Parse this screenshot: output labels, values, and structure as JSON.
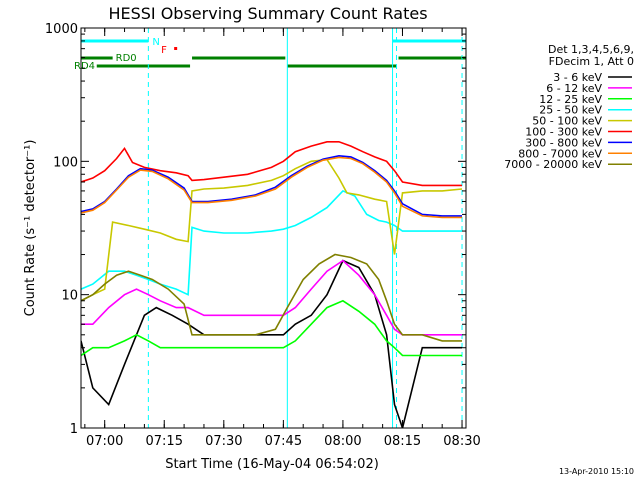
{
  "chart_data": {
    "type": "line",
    "title": "HESSI Observing Summary Count Rates",
    "xlabel": "Start Time (16-May-04 06:54:02)",
    "ylabel": "Count Rate (s⁻¹ detector⁻¹)",
    "y_scale": "log",
    "xlim": [
      "06:54:02",
      "08:31:00"
    ],
    "ylim": [
      1,
      1000
    ],
    "x_ticks": [
      "07:00",
      "07:15",
      "07:30",
      "07:45",
      "08:00",
      "08:15",
      "08:30"
    ],
    "y_ticks": [
      "1",
      "10",
      "100",
      "1000"
    ],
    "grid": false,
    "legend_position": "right",
    "legend_header": [
      "Det 1,3,4,5,6,9,",
      "FDecim 1, Att 0"
    ],
    "footer_date": "13-Apr-2010 15:10",
    "flag_labels": {
      "night": "N",
      "flare": "F",
      "rd0": "RD0",
      "rd4": "RD4"
    },
    "flags": {
      "night_intervals": [
        [
          "06:54:02",
          "07:11:00"
        ],
        [
          "08:12:30",
          "08:31:00"
        ]
      ],
      "flare_mark": "07:18",
      "rd0_intervals": [
        [
          "06:54:02",
          "07:02:00"
        ],
        [
          "07:22:00",
          "07:45:30"
        ],
        [
          "08:14:00",
          "08:31:00"
        ]
      ],
      "rd4_intervals": [
        [
          "06:58:00",
          "07:21:30"
        ],
        [
          "07:46:00",
          "08:13:30"
        ]
      ]
    },
    "markers": {
      "cyan_solid": [
        "06:54:02",
        "07:46:00",
        "08:12:30"
      ],
      "cyan_dashed": [
        "07:11:00",
        "08:13:30",
        "08:30:00"
      ]
    },
    "series": [
      {
        "name": "3 - 6 keV",
        "color": "#000000",
        "x": [
          "06:54:02",
          "06:57:00",
          "07:01:00",
          "07:05:00",
          "07:08:00",
          "07:10:00",
          "07:13:00",
          "07:17:00",
          "07:21:00",
          "07:25:00",
          "07:30:00",
          "07:36:00",
          "07:42:00",
          "07:45:00",
          "07:48:00",
          "07:52:00",
          "07:56:00",
          "08:00:00",
          "08:04:00",
          "08:08:00",
          "08:11:00",
          "08:13:00",
          "08:15:00",
          "08:20:00",
          "08:25:00",
          "08:30:00"
        ],
        "y": [
          4.5,
          2.0,
          1.5,
          3.0,
          5.0,
          7.0,
          8.0,
          7.0,
          6.0,
          5.0,
          5.0,
          5.0,
          5.0,
          5.0,
          6.0,
          7.0,
          10.0,
          18.0,
          16.0,
          10.0,
          5.0,
          1.5,
          1.0,
          4.0,
          4.0,
          4.0
        ]
      },
      {
        "name": "6 - 12 keV",
        "color": "#ff00ff",
        "x": [
          "06:54:02",
          "06:57:00",
          "07:01:00",
          "07:05:00",
          "07:08:00",
          "07:11:00",
          "07:14:00",
          "07:18:00",
          "07:21:00",
          "07:25:00",
          "07:30:00",
          "07:36:00",
          "07:42:00",
          "07:45:00",
          "07:48:00",
          "07:52:00",
          "07:56:00",
          "08:00:00",
          "08:04:00",
          "08:08:00",
          "08:11:00",
          "08:13:00",
          "08:15:00",
          "08:20:00",
          "08:25:00",
          "08:30:00"
        ],
        "y": [
          6.0,
          6.0,
          8.0,
          10.0,
          11.0,
          10.0,
          9.0,
          8.0,
          8.0,
          7.0,
          7.0,
          7.0,
          7.0,
          7.0,
          8.0,
          11.0,
          15.0,
          18.0,
          14.0,
          10.0,
          7.0,
          5.5,
          5.0,
          5.0,
          5.0,
          5.0
        ]
      },
      {
        "name": "12 - 25 keV",
        "color": "#00ff00",
        "x": [
          "06:54:02",
          "06:57:00",
          "07:01:00",
          "07:05:00",
          "07:08:00",
          "07:11:00",
          "07:14:00",
          "07:18:00",
          "07:21:00",
          "07:25:00",
          "07:30:00",
          "07:36:00",
          "07:42:00",
          "07:45:00",
          "07:48:00",
          "07:52:00",
          "07:56:00",
          "08:00:00",
          "08:04:00",
          "08:08:00",
          "08:11:00",
          "08:13:00",
          "08:15:00",
          "08:20:00",
          "08:25:00",
          "08:30:00"
        ],
        "y": [
          3.5,
          4.0,
          4.0,
          4.5,
          5.0,
          4.5,
          4.0,
          4.0,
          4.0,
          4.0,
          4.0,
          4.0,
          4.0,
          4.0,
          4.5,
          6.0,
          8.0,
          9.0,
          7.5,
          6.0,
          4.5,
          4.0,
          3.5,
          3.5,
          3.5,
          3.5
        ]
      },
      {
        "name": "25 - 50 keV",
        "color": "#00ffff",
        "x": [
          "06:54:02",
          "06:57:00",
          "07:01:00",
          "07:05:00",
          "07:08:00",
          "07:11:00",
          "07:14:00",
          "07:18:00",
          "07:21:00",
          "07:22:00",
          "07:25:00",
          "07:30:00",
          "07:36:00",
          "07:42:00",
          "07:45:00",
          "07:48:00",
          "07:52:00",
          "07:56:00",
          "08:00:00",
          "08:03:00",
          "08:06:00",
          "08:09:00",
          "08:11:00",
          "08:13:00",
          "08:15:00",
          "08:20:00",
          "08:25:00",
          "08:30:00"
        ],
        "y": [
          11.0,
          12.0,
          15.0,
          15.0,
          14.0,
          13.0,
          12.0,
          11.0,
          10.0,
          32.0,
          30.0,
          29.0,
          29.0,
          30.0,
          31.0,
          33.0,
          38.0,
          45.0,
          60.0,
          55.0,
          40.0,
          36.0,
          35.0,
          33.0,
          30.0,
          30.0,
          30.0,
          30.0
        ]
      },
      {
        "name": "50 - 100 keV",
        "color": "#c8c800",
        "x": [
          "06:54:02",
          "06:57:00",
          "07:00:00",
          "07:02:00",
          "07:06:00",
          "07:10:00",
          "07:14:00",
          "07:18:00",
          "07:21:00",
          "07:22:00",
          "07:25:00",
          "07:30:00",
          "07:36:00",
          "07:42:00",
          "07:45:00",
          "07:48:00",
          "07:52:00",
          "07:56:00",
          "07:59:00",
          "08:01:00",
          "08:04:00",
          "08:08:00",
          "08:11:00",
          "08:13:00",
          "08:15:00",
          "08:20:00",
          "08:25:00",
          "08:30:00"
        ],
        "y": [
          9.0,
          10.0,
          11.0,
          35.0,
          33.0,
          31.0,
          29.0,
          26.0,
          25.0,
          60.0,
          62.0,
          63.0,
          66.0,
          72.0,
          78.0,
          88.0,
          100.0,
          103.0,
          75.0,
          58.0,
          56.0,
          52.0,
          50.0,
          20.0,
          58.0,
          60.0,
          60.0,
          62.0
        ]
      },
      {
        "name": "100 - 300 keV",
        "color": "#ff0000",
        "x": [
          "06:54:02",
          "06:57:00",
          "07:00:00",
          "07:03:00",
          "07:05:00",
          "07:07:00",
          "07:10:00",
          "07:14:00",
          "07:18:00",
          "07:21:00",
          "07:22:00",
          "07:25:00",
          "07:30:00",
          "07:36:00",
          "07:42:00",
          "07:45:00",
          "07:48:00",
          "07:52:00",
          "07:56:00",
          "07:59:00",
          "08:02:00",
          "08:05:00",
          "08:08:00",
          "08:11:00",
          "08:13:00",
          "08:15:00",
          "08:20:00",
          "08:25:00",
          "08:30:00"
        ],
        "y": [
          70.0,
          75.0,
          85.0,
          105.0,
          125.0,
          98.0,
          90.0,
          85.0,
          82.0,
          78.0,
          72.0,
          73.0,
          76.0,
          80.0,
          90.0,
          100.0,
          118.0,
          130.0,
          140.0,
          140.0,
          130.0,
          118.0,
          108.0,
          100.0,
          85.0,
          70.0,
          66.0,
          66.0,
          66.0
        ]
      },
      {
        "name": "300 - 800 keV",
        "color": "#0000ff",
        "x": [
          "06:54:02",
          "06:57:00",
          "07:00:00",
          "07:03:00",
          "07:06:00",
          "07:09:00",
          "07:12:00",
          "07:16:00",
          "07:20:00",
          "07:22:00",
          "07:26:00",
          "07:32:00",
          "07:38:00",
          "07:43:00",
          "07:47:00",
          "07:51:00",
          "07:55:00",
          "07:59:00",
          "08:02:00",
          "08:05:00",
          "08:08:00",
          "08:11:00",
          "08:13:00",
          "08:15:00",
          "08:20:00",
          "08:25:00",
          "08:30:00"
        ],
        "y": [
          42.0,
          44.0,
          50.0,
          62.0,
          78.0,
          88.0,
          86.0,
          76.0,
          63.0,
          50.0,
          50.0,
          52.0,
          56.0,
          64.0,
          78.0,
          92.0,
          104.0,
          110.0,
          108.0,
          98.0,
          85.0,
          72.0,
          60.0,
          48.0,
          40.0,
          39.0,
          39.0
        ]
      },
      {
        "name": "800 - 7000 keV",
        "color": "#ff8000",
        "x": [
          "06:54:02",
          "06:57:00",
          "07:00:00",
          "07:03:00",
          "07:06:00",
          "07:09:00",
          "07:12:00",
          "07:16:00",
          "07:20:00",
          "07:22:00",
          "07:26:00",
          "07:32:00",
          "07:38:00",
          "07:43:00",
          "07:47:00",
          "07:51:00",
          "07:55:00",
          "07:59:00",
          "08:02:00",
          "08:05:00",
          "08:08:00",
          "08:11:00",
          "08:13:00",
          "08:15:00",
          "08:20:00",
          "08:25:00",
          "08:30:00"
        ],
        "y": [
          41.0,
          43.0,
          49.0,
          61.0,
          76.0,
          86.0,
          84.0,
          74.0,
          61.0,
          49.0,
          49.0,
          51.0,
          55.0,
          62.0,
          76.0,
          90.0,
          102.0,
          107.0,
          105.0,
          96.0,
          83.0,
          70.0,
          58.0,
          46.0,
          39.0,
          38.0,
          38.0
        ]
      },
      {
        "name": "7000 - 20000 keV",
        "color": "#808000",
        "x": [
          "06:54:02",
          "06:57:00",
          "07:00:00",
          "07:03:00",
          "07:06:00",
          "07:09:00",
          "07:12:00",
          "07:16:00",
          "07:20:00",
          "07:22:00",
          "07:26:00",
          "07:32:00",
          "07:38:00",
          "07:43:00",
          "07:46:00",
          "07:50:00",
          "07:54:00",
          "07:58:00",
          "08:02:00",
          "08:06:00",
          "08:09:00",
          "08:11:00",
          "08:13:00",
          "08:15:00",
          "08:20:00",
          "08:25:00",
          "08:30:00"
        ],
        "y": [
          9.0,
          10.0,
          12.0,
          14.0,
          15.0,
          14.0,
          13.0,
          11.0,
          8.5,
          5.0,
          5.0,
          5.0,
          5.0,
          5.5,
          8.0,
          13.0,
          17.0,
          20.0,
          19.0,
          17.0,
          13.0,
          9.0,
          6.0,
          5.0,
          5.0,
          4.5,
          4.5
        ]
      }
    ]
  }
}
